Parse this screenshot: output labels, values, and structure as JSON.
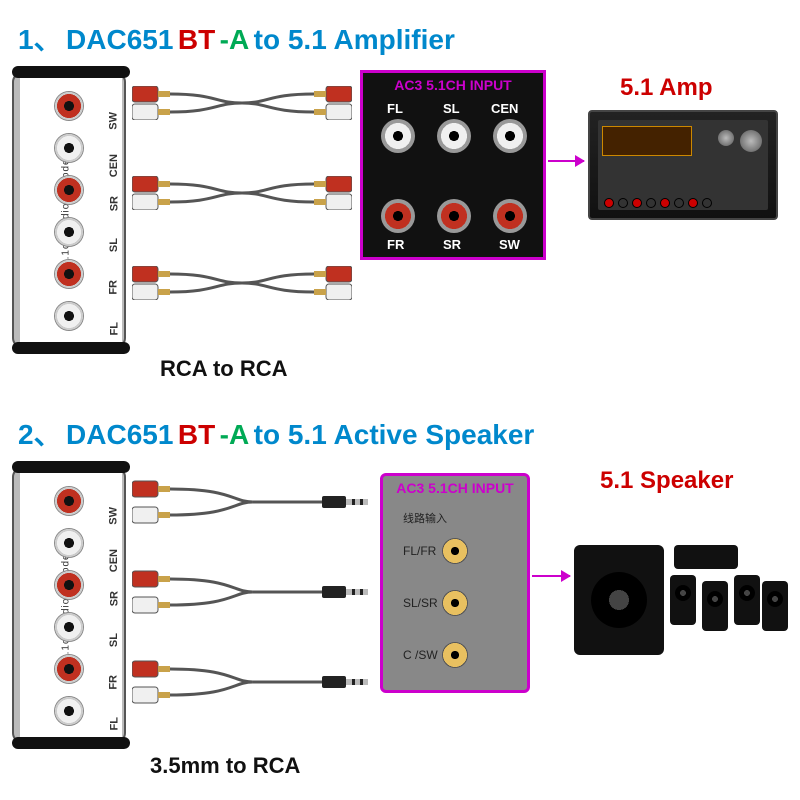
{
  "colors": {
    "blue": "#0088cc",
    "red": "#cc0000",
    "green": "#00aa55",
    "magenta": "#cc00cc",
    "rca_red": "#c03020",
    "rca_white": "#f0f0f0",
    "gold": "#e8c060"
  },
  "section1": {
    "heading_num": "1、",
    "heading_model": "DAC651",
    "heading_bt": "BT",
    "heading_dash": "-A",
    "heading_rest": " to 5.1 Amplifier",
    "dac": {
      "side_text": "5.1ch Audio Decoder",
      "jacks": [
        {
          "label": "SW",
          "ring": "#c03020"
        },
        {
          "label": "CEN",
          "ring": "#f0f0f0"
        },
        {
          "label": "SR",
          "ring": "#c03020"
        },
        {
          "label": "SL",
          "ring": "#f0f0f0"
        },
        {
          "label": "FR",
          "ring": "#c03020"
        },
        {
          "label": "FL",
          "ring": "#f0f0f0"
        }
      ]
    },
    "cables": {
      "type": "RCA to RCA",
      "count": 3
    },
    "caption": "RCA to RCA",
    "panel": {
      "header": "AC3 5.1CH INPUT",
      "jacks": [
        {
          "label": "FL",
          "ring": "#f0f0f0",
          "col": 0,
          "row": 0
        },
        {
          "label": "SL",
          "ring": "#f0f0f0",
          "col": 1,
          "row": 0
        },
        {
          "label": "CEN",
          "ring": "#f0f0f0",
          "col": 2,
          "row": 0
        },
        {
          "label": "FR",
          "ring": "#c03020",
          "col": 0,
          "row": 1
        },
        {
          "label": "SR",
          "ring": "#c03020",
          "col": 1,
          "row": 1
        },
        {
          "label": "SW",
          "ring": "#c03020",
          "col": 2,
          "row": 1
        }
      ]
    },
    "amp_label": "5.1 Amp"
  },
  "section2": {
    "heading_num": "2、",
    "heading_model": "DAC651",
    "heading_bt": "BT",
    "heading_dash": "-A",
    "heading_rest": " to 5.1 Active Speaker",
    "dac": {
      "side_text": "5.1ch Audio Decoder",
      "jacks": [
        {
          "label": "SW",
          "ring": "#c03020"
        },
        {
          "label": "CEN",
          "ring": "#f0f0f0"
        },
        {
          "label": "SR",
          "ring": "#c03020"
        },
        {
          "label": "SL",
          "ring": "#f0f0f0"
        },
        {
          "label": "FR",
          "ring": "#c03020"
        },
        {
          "label": "FL",
          "ring": "#f0f0f0"
        }
      ]
    },
    "cables": {
      "type": "3.5mm to RCA",
      "count": 3
    },
    "caption": "3.5mm to RCA",
    "panel": {
      "header": "AC3 5.1CH INPUT",
      "line_in": "线路输入",
      "jacks": [
        {
          "label": "FL/FR"
        },
        {
          "label": "SL/SR"
        },
        {
          "label": "C /SW"
        }
      ]
    },
    "spk_label": "5.1 Speaker"
  }
}
